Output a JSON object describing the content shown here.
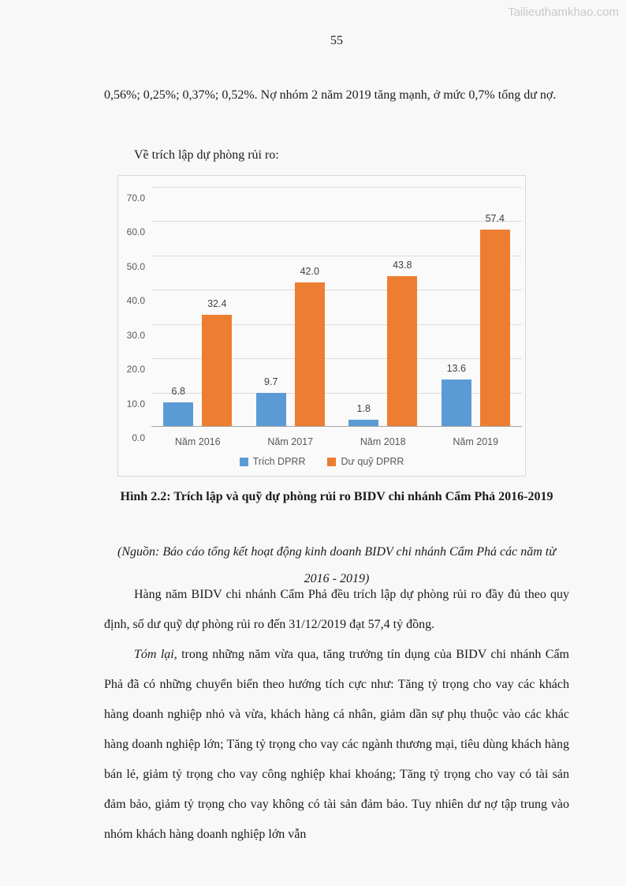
{
  "watermark": "Tailieuthamkhao.com",
  "page_number": "55",
  "intro": {
    "p1": "0,56%; 0,25%; 0,37%; 0,52%. Nợ nhóm 2 năm 2019 tăng mạnh, ở mức 0,7% tổng dư nợ.",
    "p2": "Về trích lập dự phòng rủi ro:"
  },
  "figure": {
    "caption": "Hình 2.2: Trích lập và quỹ dự phòng rủi ro BIDV chi nhánh Cẩm Phả 2016-2019",
    "source": "(Nguồn: Báo cáo tổng kết hoạt động kinh doanh BIDV chi nhánh Cẩm Phả các năm từ 2016 - 2019)"
  },
  "body": {
    "p3": "Hàng năm BIDV chi nhánh Cẩm Phả đều trích lập dự phòng rủi ro đầy đủ theo quy định, số dư quỹ dự phòng rủi ro đến 31/12/2019 đạt 57,4 tỷ đồng.",
    "p4_lead": "Tóm lại",
    "p4_rest": ", trong những năm vừa qua, tăng trưởng tín dụng của BIDV chi nhánh Cẩm Phả đã có những chuyển biến theo hướng tích cực như: Tăng tỷ trọng cho vay các khách hàng doanh nghiệp nhỏ và vừa, khách hàng cá nhân, giảm dần sự phụ thuộc vào các khác hàng doanh nghiệp lớn; Tăng tỷ trọng cho vay các ngành thương mại, tiêu dùng khách hàng bán lẻ, giảm tỷ trọng cho vay công nghiệp khai khoáng; Tăng tỷ trọng cho vay có tài sản đảm bảo, giảm tỷ trọng cho vay không có tài sản đảm bảo. Tuy nhiên dư nợ tập trung vào nhóm khách hàng doanh nghiệp lớn vẫn"
  },
  "chart_data": {
    "type": "bar",
    "categories": [
      "Năm 2016",
      "Năm 2017",
      "Năm 2018",
      "Năm 2019"
    ],
    "series": [
      {
        "name": "Trích DPRR",
        "color": "#5B9BD5",
        "values": [
          6.8,
          9.7,
          1.8,
          13.6
        ]
      },
      {
        "name": "Dư quỹ DPRR",
        "color": "#ED7D31",
        "values": [
          32.4,
          42.0,
          43.8,
          57.4
        ]
      }
    ],
    "title": "",
    "xlabel": "",
    "ylabel": "",
    "ylim": [
      0,
      70
    ],
    "ytick_step": 10,
    "ytick_labels": [
      "0.0",
      "10.0",
      "20.0",
      "30.0",
      "40.0",
      "50.0",
      "60.0",
      "70.0"
    ],
    "grid": true,
    "legend_position": "bottom",
    "value_labels": true
  }
}
